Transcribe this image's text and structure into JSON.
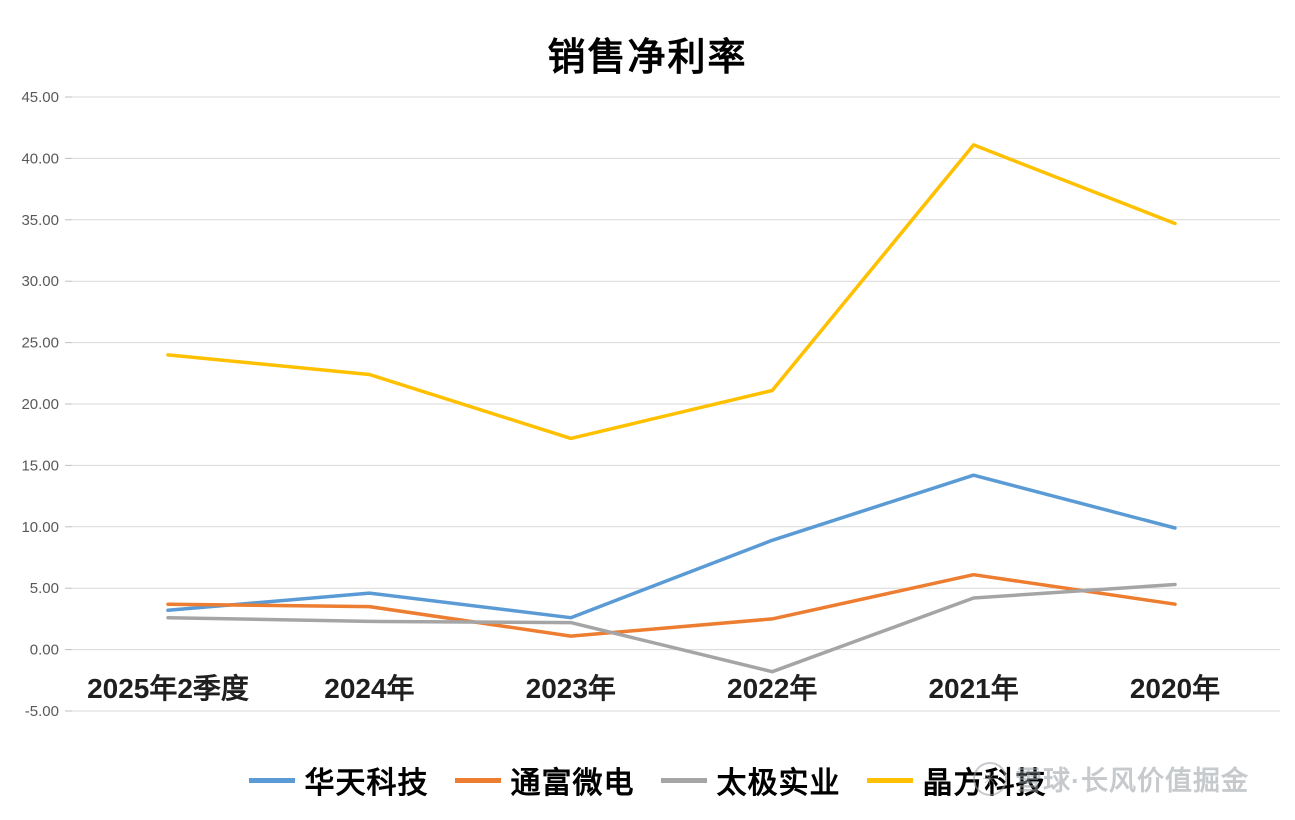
{
  "watermark": {
    "text": "雪球·长风价值掘金"
  },
  "chart_data": {
    "type": "line",
    "title": "销售净利率",
    "categories": [
      "2025年2季度",
      "2024年",
      "2023年",
      "2022年",
      "2021年",
      "2020年"
    ],
    "series": [
      {
        "name": "华天科技",
        "color": "#5B9BD5",
        "values": [
          3.2,
          4.6,
          2.6,
          8.9,
          14.2,
          9.9
        ]
      },
      {
        "name": "通富微电",
        "color": "#ED7D31",
        "values": [
          3.7,
          3.5,
          1.1,
          2.5,
          6.1,
          3.7
        ]
      },
      {
        "name": "太极实业",
        "color": "#A5A5A5",
        "values": [
          2.6,
          2.3,
          2.2,
          -1.8,
          4.2,
          5.3
        ]
      },
      {
        "name": "晶方科技",
        "color": "#FFC000",
        "values": [
          24.0,
          22.4,
          17.2,
          21.1,
          41.1,
          34.7
        ]
      }
    ],
    "ylim": [
      -5,
      45
    ],
    "yticks": [
      "45.00",
      "40.00",
      "35.00",
      "30.00",
      "25.00",
      "20.00",
      "15.00",
      "10.00",
      "5.00",
      "0.00",
      "-5.00"
    ],
    "grid": "horizontal",
    "legend_position": "bottom",
    "gridline_color": "#D9D9D9",
    "tick_color": "#BFBFBF",
    "ytick_label_color": "#595959",
    "xlabel_color": "#1f1f1f"
  }
}
